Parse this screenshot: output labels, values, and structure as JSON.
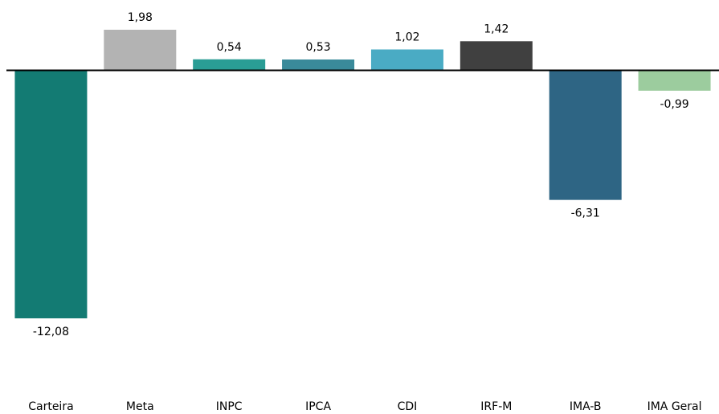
{
  "chart_data": {
    "type": "bar",
    "categories": [
      "Carteira",
      "Meta",
      "INPC",
      "IPCA",
      "CDI",
      "IRF-M",
      "IMA-B",
      "IMA Geral"
    ],
    "values": [
      -12.08,
      1.98,
      0.54,
      0.53,
      1.02,
      1.42,
      -6.31,
      -0.99
    ],
    "value_labels": [
      "-12,08",
      "1,98",
      "0,54",
      "0,53",
      "1,02",
      "1,42",
      "-6,31",
      "-0,99"
    ],
    "colors": [
      "#137b73",
      "#b3b3b3",
      "#2a9d95",
      "#3a8a9a",
      "#4aabc4",
      "#404040",
      "#2e6584",
      "#9ccc9e"
    ]
  }
}
